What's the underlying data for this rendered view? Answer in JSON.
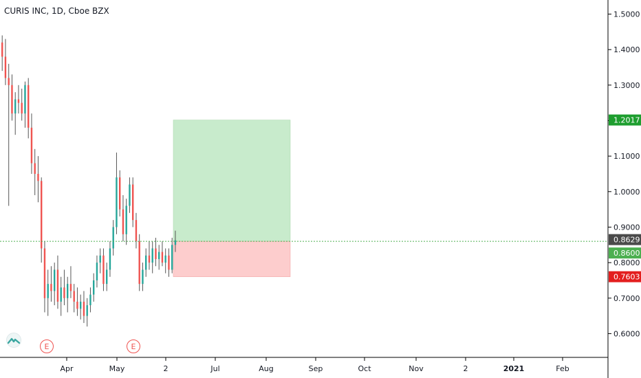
{
  "header": {
    "title": "CURIS INC, 1D, Cboe BZX"
  },
  "earnings_marker_label": "E",
  "colors": {
    "up": "#26a69a",
    "down": "#ef5350",
    "profit_zone": "#c8ebcc",
    "loss_zone": "#fdcdcd",
    "target_badge": "#1e9e2f",
    "stop_badge": "#e31e1e",
    "entry_badge": "#4caf50",
    "last_price_badge": "#4a4a4a",
    "entry_line": "#4caf50"
  },
  "chart_data": {
    "type": "candlestick",
    "title": "CURIS INC, 1D, Cboe BZX",
    "ylim": [
      0.53,
      1.55
    ],
    "y_ticks": [
      "1.5000",
      "1.4000",
      "1.3000",
      "1.2000",
      "1.1000",
      "1.0000",
      "0.9000",
      "0.8000",
      "0.7000",
      "0.6000"
    ],
    "x_ticks": [
      "Apr",
      "May",
      "2",
      "Jul",
      "Aug",
      "Sep",
      "Oct",
      "Nov",
      "2",
      "2021",
      "Feb"
    ],
    "price_labels": [
      {
        "name": "target",
        "value": "1.2017"
      },
      {
        "name": "last",
        "value": "0.8629"
      },
      {
        "name": "entry",
        "value": "0.8600"
      },
      {
        "name": "stop",
        "value": "0.7603"
      }
    ],
    "position": {
      "entry": 0.86,
      "target": 1.2017,
      "stop": 0.7603,
      "last": 0.8629
    },
    "candles": [
      [
        1.42,
        1.44,
        1.34,
        1.38
      ],
      [
        1.38,
        1.43,
        1.3,
        1.32
      ],
      [
        1.32,
        1.36,
        0.96,
        1.3
      ],
      [
        1.3,
        1.33,
        1.2,
        1.22
      ],
      [
        1.22,
        1.28,
        1.16,
        1.26
      ],
      [
        1.26,
        1.3,
        1.22,
        1.25
      ],
      [
        1.25,
        1.29,
        1.2,
        1.22
      ],
      [
        1.22,
        1.31,
        1.18,
        1.3
      ],
      [
        1.3,
        1.32,
        1.15,
        1.18
      ],
      [
        1.18,
        1.22,
        1.05,
        1.08
      ],
      [
        1.08,
        1.12,
        0.99,
        1.05
      ],
      [
        1.05,
        1.1,
        0.97,
        1.03
      ],
      [
        1.03,
        1.04,
        0.8,
        0.84
      ],
      [
        0.84,
        0.86,
        0.66,
        0.7
      ],
      [
        0.7,
        0.78,
        0.65,
        0.74
      ],
      [
        0.74,
        0.79,
        0.69,
        0.72
      ],
      [
        0.72,
        0.8,
        0.68,
        0.78
      ],
      [
        0.78,
        0.82,
        0.67,
        0.69
      ],
      [
        0.69,
        0.76,
        0.65,
        0.73
      ],
      [
        0.73,
        0.78,
        0.68,
        0.7
      ],
      [
        0.7,
        0.76,
        0.66,
        0.74
      ],
      [
        0.74,
        0.79,
        0.7,
        0.72
      ],
      [
        0.72,
        0.74,
        0.66,
        0.69
      ],
      [
        0.69,
        0.73,
        0.65,
        0.67
      ],
      [
        0.67,
        0.71,
        0.64,
        0.69
      ],
      [
        0.69,
        0.72,
        0.63,
        0.65
      ],
      [
        0.65,
        0.7,
        0.62,
        0.68
      ],
      [
        0.68,
        0.73,
        0.66,
        0.71
      ],
      [
        0.71,
        0.77,
        0.69,
        0.75
      ],
      [
        0.75,
        0.82,
        0.73,
        0.8
      ],
      [
        0.8,
        0.84,
        0.77,
        0.82
      ],
      [
        0.82,
        0.84,
        0.72,
        0.74
      ],
      [
        0.74,
        0.8,
        0.72,
        0.78
      ],
      [
        0.78,
        0.86,
        0.76,
        0.84
      ],
      [
        0.84,
        0.92,
        0.82,
        0.9
      ],
      [
        0.9,
        1.11,
        0.88,
        1.04
      ],
      [
        1.04,
        1.06,
        0.93,
        0.95
      ],
      [
        0.95,
        0.99,
        0.86,
        0.88
      ],
      [
        0.88,
        0.98,
        0.85,
        0.96
      ],
      [
        0.96,
        1.04,
        0.94,
        1.02
      ],
      [
        1.02,
        1.04,
        0.9,
        0.92
      ],
      [
        0.92,
        0.94,
        0.84,
        0.86
      ],
      [
        0.86,
        0.88,
        0.72,
        0.74
      ],
      [
        0.74,
        0.8,
        0.72,
        0.78
      ],
      [
        0.78,
        0.84,
        0.76,
        0.82
      ],
      [
        0.82,
        0.86,
        0.78,
        0.8
      ],
      [
        0.8,
        0.86,
        0.77,
        0.84
      ],
      [
        0.84,
        0.87,
        0.79,
        0.81
      ],
      [
        0.81,
        0.85,
        0.78,
        0.83
      ],
      [
        0.83,
        0.86,
        0.79,
        0.8
      ],
      [
        0.8,
        0.84,
        0.77,
        0.82
      ],
      [
        0.82,
        0.84,
        0.76,
        0.78
      ],
      [
        0.78,
        0.87,
        0.77,
        0.85
      ],
      [
        0.85,
        0.89,
        0.83,
        0.8629
      ]
    ]
  }
}
